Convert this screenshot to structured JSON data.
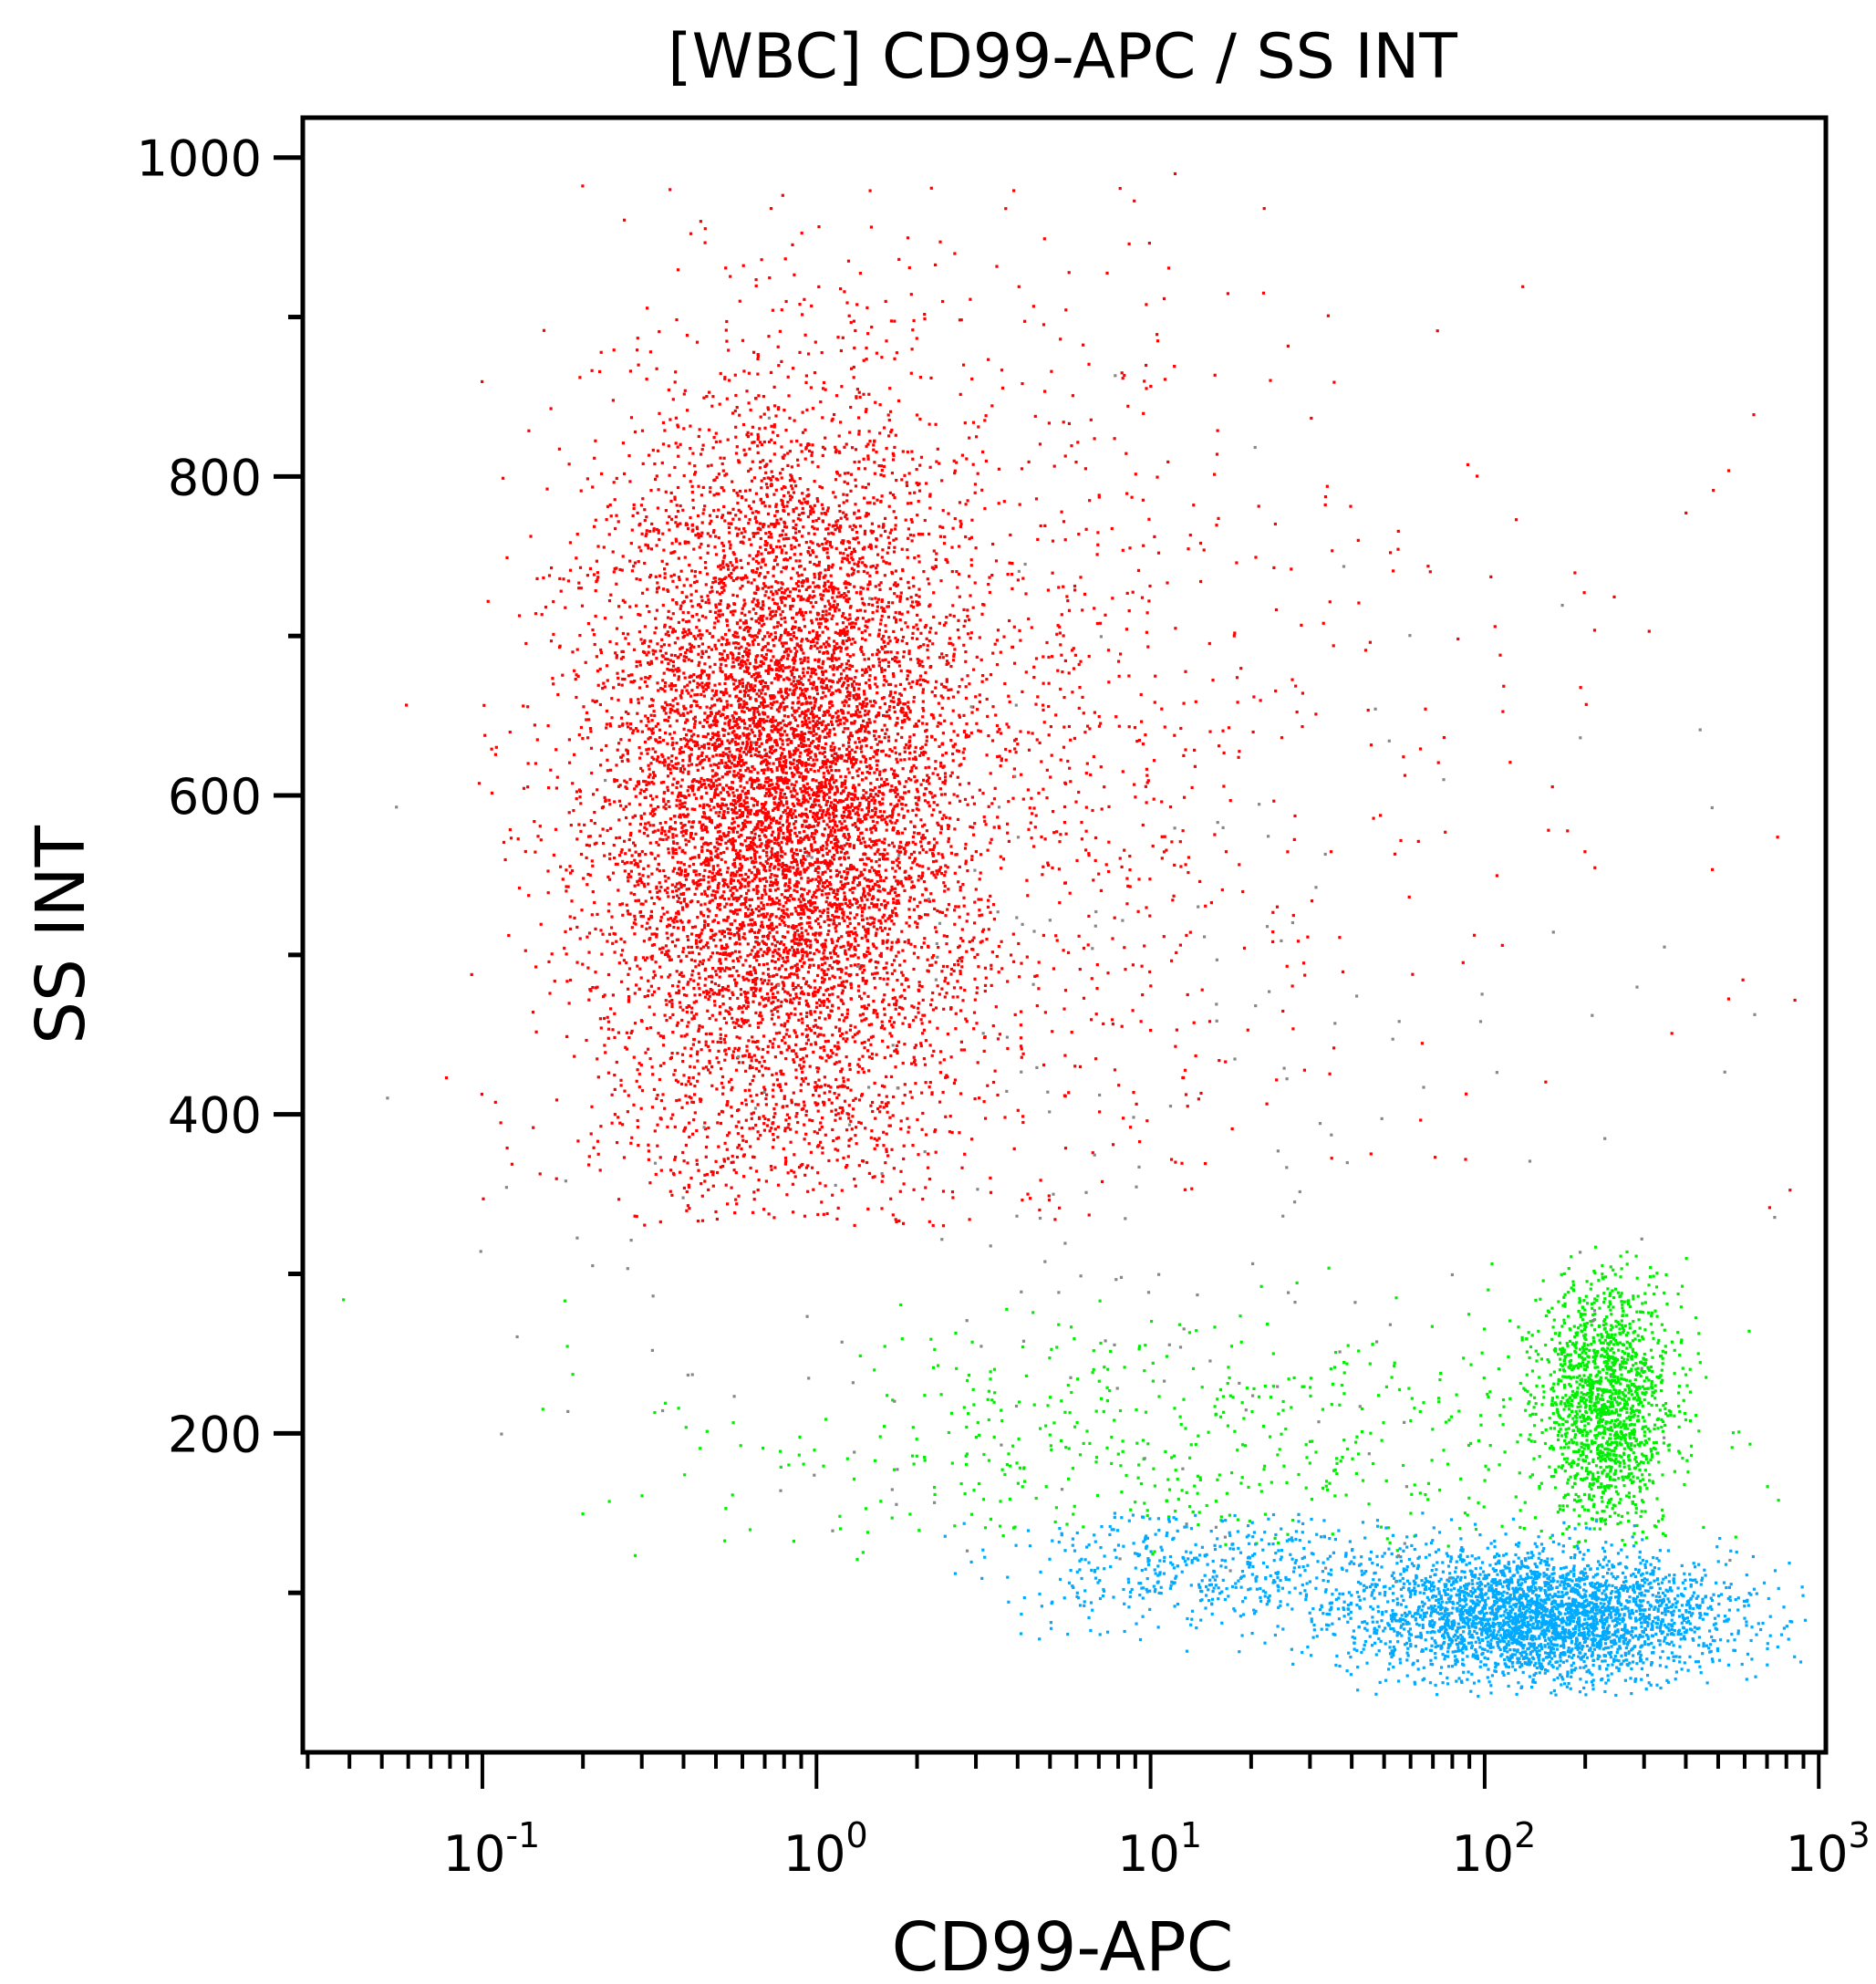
{
  "chart_data": {
    "type": "scatter",
    "title": "[WBC] CD99-APC / SS INT",
    "xlabel": "CD99-APC",
    "ylabel": "SS INT",
    "x_scale": "log",
    "xlim": [
      0.029,
      1050
    ],
    "ylim": [
      0,
      1025
    ],
    "grid": false,
    "x_ticks": [
      {
        "value": 0.1,
        "base": "10",
        "exp": "-1"
      },
      {
        "value": 1,
        "base": "10",
        "exp": "0"
      },
      {
        "value": 10,
        "base": "10",
        "exp": "1"
      },
      {
        "value": 100,
        "base": "10",
        "exp": "2"
      },
      {
        "value": 1000,
        "base": "10",
        "exp": "3"
      }
    ],
    "y_ticks": [
      {
        "value": 200,
        "label": "200"
      },
      {
        "value": 400,
        "label": "400"
      },
      {
        "value": 600,
        "label": "600"
      },
      {
        "value": 800,
        "label": "800"
      },
      {
        "value": 1000,
        "label": "1000"
      }
    ],
    "populations": [
      {
        "color": "#ff0000",
        "count": 9000,
        "x_center": 0.8,
        "x_sd_decades": 0.28,
        "y_center": 600,
        "y_sd": 120,
        "y_range": [
          330,
          990
        ]
      },
      {
        "color": "#ff0000",
        "count": 900,
        "x_center": 5,
        "x_sd_decades": 0.45,
        "y_center": 620,
        "y_sd": 170,
        "y_range": [
          330,
          990
        ]
      },
      {
        "color": "#ff0000",
        "count": 60,
        "x_center": 150,
        "x_sd_decades": 0.5,
        "y_center": 600,
        "y_sd": 180,
        "y_range": [
          300,
          990
        ]
      },
      {
        "color": "#00ee00",
        "count": 1500,
        "x_center": 230,
        "x_sd_decades": 0.1,
        "y_center": 220,
        "y_sd": 38,
        "y_range": [
          130,
          320
        ]
      },
      {
        "color": "#00ee00",
        "count": 550,
        "x_center": 15,
        "x_sd_decades": 0.75,
        "y_center": 190,
        "y_sd": 45,
        "y_range": [
          120,
          310
        ]
      },
      {
        "color": "#00aaff",
        "count": 3200,
        "x_center": 150,
        "x_sd_decades": 0.28,
        "y_center": 85,
        "y_sd": 20,
        "y_range": [
          35,
          150
        ]
      },
      {
        "color": "#00aaff",
        "count": 500,
        "x_center": 15,
        "x_sd_decades": 0.3,
        "y_center": 115,
        "y_sd": 20,
        "y_range": [
          60,
          150
        ]
      },
      {
        "color": "#888888",
        "count": 220,
        "x_center": 10,
        "x_sd_decades": 1.0,
        "y_center": 330,
        "y_sd": 200,
        "y_range": [
          100,
          990
        ]
      }
    ]
  }
}
